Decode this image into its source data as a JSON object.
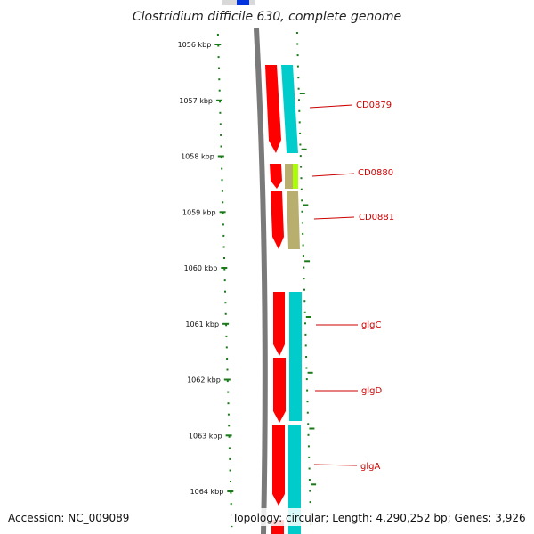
{
  "title": "Clostridium difficile 630, complete genome",
  "footer": {
    "accession": "Accession: NC_009089",
    "topology": "Topology: circular; Length: 4,290,252 bp; Genes: 3,926"
  },
  "colors": {
    "tick": "#1a7a1a",
    "backbone": "#7a7a7a",
    "cds": "#ff0000",
    "label": "#cc0000",
    "cyan": "#00cccc",
    "olive": "#b8ae6e",
    "lime": "#aaff00"
  },
  "ruler": {
    "labels": [
      "1056 kbp",
      "1057 kbp",
      "1058 kbp",
      "1059 kbp",
      "1060 kbp",
      "1061 kbp",
      "1062 kbp",
      "1063 kbp",
      "1064 kbp"
    ]
  },
  "genes": [
    {
      "label": "CD0879"
    },
    {
      "label": "CD0880"
    },
    {
      "label": "CD0881"
    },
    {
      "label": "glgC"
    },
    {
      "label": "glgD"
    },
    {
      "label": "glgA"
    }
  ]
}
